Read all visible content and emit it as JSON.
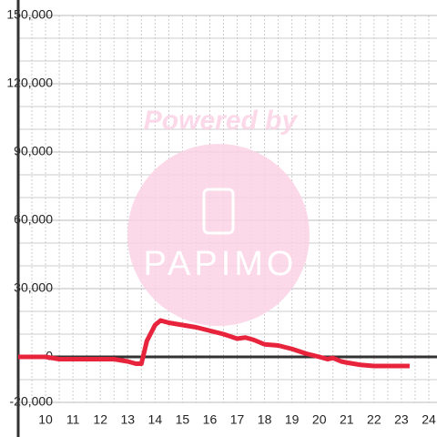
{
  "chart_data": {
    "type": "line",
    "x": [
      9,
      10,
      10.5,
      12.5,
      13,
      13.3,
      13.5,
      13.7,
      14,
      14.2,
      14.5,
      15,
      15.5,
      16,
      16.5,
      17,
      17.3,
      17.6,
      18,
      18.5,
      19,
      19.5,
      20,
      20.3,
      20.5,
      20.8,
      21,
      21.5,
      22,
      23.3
    ],
    "series": [
      {
        "color": "#e8243c",
        "values": [
          0,
          0,
          -1000,
          -1000,
          -2000,
          -3000,
          -3000,
          7000,
          14000,
          16000,
          15000,
          14000,
          13000,
          11500,
          10000,
          8000,
          8500,
          7500,
          5500,
          5000,
          3500,
          1500,
          0,
          -1000,
          -500,
          -2000,
          -2500,
          -3500,
          -4000,
          -4000
        ]
      }
    ],
    "xlim": [
      9,
      24.3
    ],
    "xticks": [
      10,
      11,
      12,
      13,
      14,
      15,
      16,
      17,
      18,
      19,
      20,
      21,
      22,
      23,
      24
    ],
    "xminor": [
      9.5,
      10.5,
      11.5,
      12.5,
      13.5,
      14.5,
      15.5,
      16.5,
      17.5,
      18.5,
      19.5,
      20.5,
      21.5,
      22.5,
      23.5
    ],
    "ylim": [
      -20000,
      150000
    ],
    "yticks": [
      {
        "value": 150000,
        "label": "150,000"
      },
      {
        "value": 120000,
        "label": "120,000"
      },
      {
        "value": 90000,
        "label": "90,000"
      },
      {
        "value": 60000,
        "label": "60,000"
      },
      {
        "value": 30000,
        "label": "30,000"
      },
      0,
      {
        "value": -20000,
        "label": "-20,000"
      }
    ],
    "yminor": [
      -10000,
      10000,
      20000,
      40000,
      50000,
      70000,
      80000,
      100000,
      110000,
      130000,
      140000
    ],
    "grid": true,
    "watermark": {
      "text": "Powered by",
      "logo": "PAPIMO"
    }
  }
}
